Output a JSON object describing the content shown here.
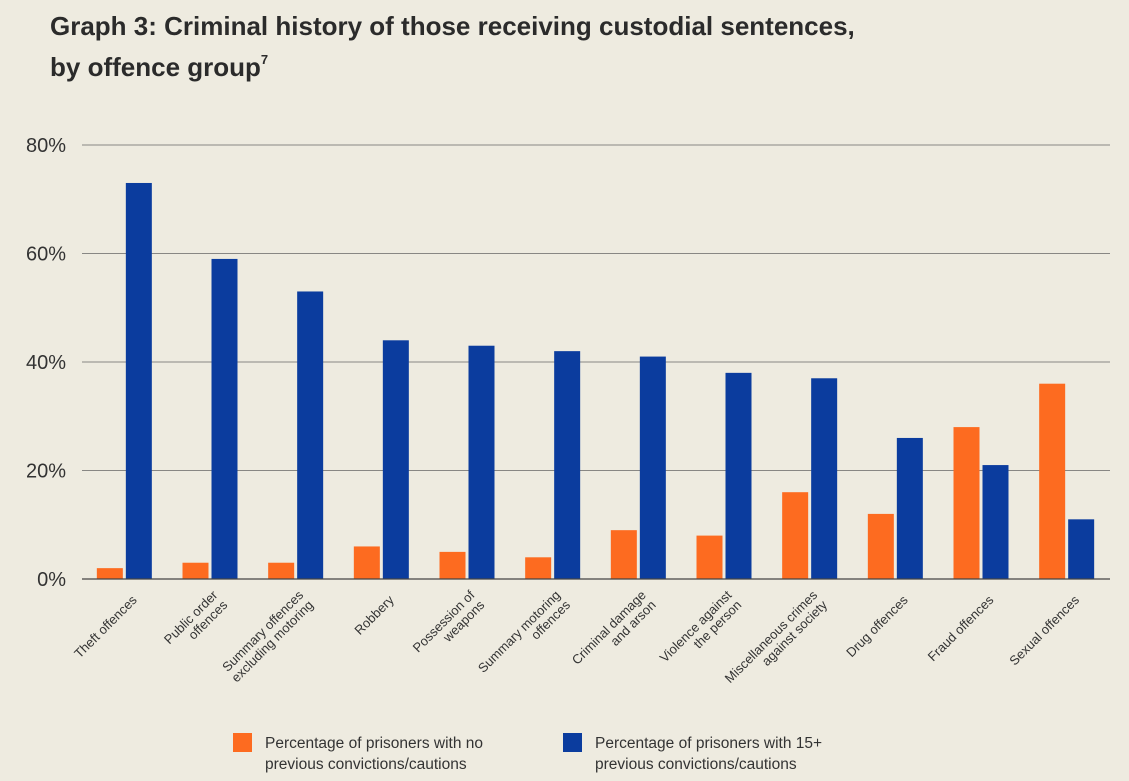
{
  "title": {
    "line1": "Graph 3: Criminal history of those receiving custodial sentences,",
    "line2": "by offence group",
    "footnote": "7"
  },
  "colors": {
    "no_previous": "#fd6b20",
    "fifteen_plus": "#0b3c9e",
    "grid": "#666666",
    "text": "#333333"
  },
  "chart_data": {
    "type": "bar",
    "title": "Graph 3: Criminal history of those receiving custodial sentences, by offence group",
    "categories": [
      "Theft offences",
      "Public order offences",
      "Summary offences excluding motoring",
      "Robbery",
      "Possession of weapons",
      "Summary motoring offences",
      "Criminal damage and arson",
      "Violence against the person",
      "Miscellaneous crimes against society",
      "Drug offences",
      "Fraud offences",
      "Sexual offences"
    ],
    "category_lines": [
      [
        "Theft offences"
      ],
      [
        "Public order",
        "offences"
      ],
      [
        "Summary offences",
        "excluding motoring"
      ],
      [
        "Robbery"
      ],
      [
        "Possession of",
        "weapons"
      ],
      [
        "Summary motoring",
        "offences"
      ],
      [
        "Criminal damage",
        "and arson"
      ],
      [
        "Violence against",
        "the person"
      ],
      [
        "Miscellaneous crimes",
        "against society"
      ],
      [
        "Drug offences"
      ],
      [
        "Fraud offences"
      ],
      [
        "Sexual offences"
      ]
    ],
    "series": [
      {
        "name": "Percentage of prisoners with no previous convictions/cautions",
        "legend_lines": [
          "Percentage of prisoners with no",
          "previous convictions/cautions"
        ],
        "color": "#fd6b20",
        "values": [
          2,
          3,
          3,
          6,
          5,
          4,
          9,
          8,
          16,
          12,
          28,
          36
        ]
      },
      {
        "name": "Percentage of prisoners with 15+ previous convictions/cautions",
        "legend_lines": [
          "Percentage of prisoners with 15+",
          "previous convictions/cautions"
        ],
        "color": "#0b3c9e",
        "values": [
          73,
          59,
          53,
          44,
          43,
          42,
          41,
          38,
          37,
          26,
          21,
          11
        ]
      }
    ],
    "ylim": [
      0,
      80
    ],
    "yticks": [
      0,
      20,
      40,
      60,
      80
    ],
    "ytick_labels": [
      "0%",
      "20%",
      "40%",
      "60%",
      "80%"
    ],
    "xlabel": "",
    "ylabel": "",
    "grid": true,
    "legend_position": "bottom"
  }
}
